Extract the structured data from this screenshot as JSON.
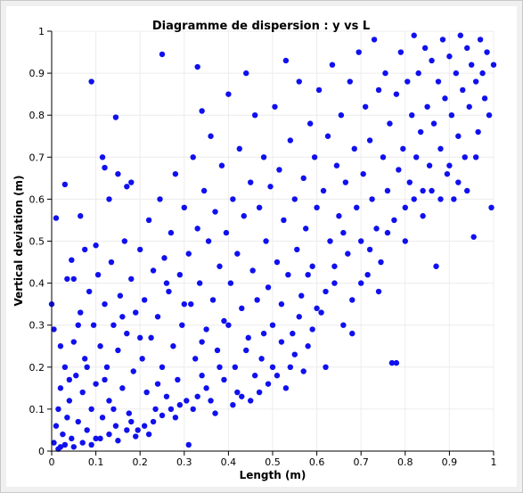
{
  "chart_data": {
    "type": "scatter",
    "title": "Diagramme de dispersion : y vs L",
    "xlabel": "Length (m)",
    "ylabel": "Vertical deviation (m)",
    "xlim": [
      0,
      1
    ],
    "ylim": [
      0,
      1
    ],
    "xticks": [
      "0",
      "0.1",
      "0.2",
      "0.3",
      "0.4",
      "0.5",
      "0.6",
      "0.7",
      "0.8",
      "0.9",
      "1"
    ],
    "yticks": [
      "0",
      "0.1",
      "0.2",
      "0.3",
      "0.4",
      "0.5",
      "0.6",
      "0.7",
      "0.8",
      "0.9",
      "1"
    ],
    "grid": true,
    "legend": "none",
    "point_color": "#1010ee",
    "points": [
      [
        0.0,
        0.35
      ],
      [
        0.005,
        0.29
      ],
      [
        0.01,
        0.555
      ],
      [
        0.02,
        0.01
      ],
      [
        0.03,
        0.635
      ],
      [
        0.035,
        0.41
      ],
      [
        0.045,
        0.455
      ],
      [
        0.05,
        0.41
      ],
      [
        0.065,
        0.56
      ],
      [
        0.075,
        0.48
      ],
      [
        0.09,
        0.88
      ],
      [
        0.1,
        0.49
      ],
      [
        0.115,
        0.7
      ],
      [
        0.12,
        0.675
      ],
      [
        0.13,
        0.6
      ],
      [
        0.145,
        0.795
      ],
      [
        0.15,
        0.66
      ],
      [
        0.17,
        0.63
      ],
      [
        0.18,
        0.64
      ],
      [
        0.25,
        0.945
      ],
      [
        0.33,
        0.915
      ],
      [
        0.34,
        0.81
      ],
      [
        0.005,
        0.02
      ],
      [
        0.01,
        0.06
      ],
      [
        0.015,
        0.1
      ],
      [
        0.02,
        0.15
      ],
      [
        0.025,
        0.04
      ],
      [
        0.03,
        0.2
      ],
      [
        0.035,
        0.08
      ],
      [
        0.04,
        0.12
      ],
      [
        0.045,
        0.03
      ],
      [
        0.05,
        0.26
      ],
      [
        0.055,
        0.18
      ],
      [
        0.06,
        0.07
      ],
      [
        0.065,
        0.33
      ],
      [
        0.07,
        0.14
      ],
      [
        0.075,
        0.22
      ],
      [
        0.08,
        0.05
      ],
      [
        0.085,
        0.38
      ],
      [
        0.09,
        0.1
      ],
      [
        0.095,
        0.3
      ],
      [
        0.1,
        0.16
      ],
      [
        0.105,
        0.42
      ],
      [
        0.11,
        0.25
      ],
      [
        0.115,
        0.08
      ],
      [
        0.12,
        0.35
      ],
      [
        0.125,
        0.2
      ],
      [
        0.13,
        0.12
      ],
      [
        0.135,
        0.45
      ],
      [
        0.14,
        0.3
      ],
      [
        0.145,
        0.06
      ],
      [
        0.15,
        0.24
      ],
      [
        0.155,
        0.37
      ],
      [
        0.16,
        0.15
      ],
      [
        0.165,
        0.5
      ],
      [
        0.17,
        0.28
      ],
      [
        0.175,
        0.09
      ],
      [
        0.18,
        0.41
      ],
      [
        0.185,
        0.19
      ],
      [
        0.19,
        0.33
      ],
      [
        0.195,
        0.05
      ],
      [
        0.2,
        0.48
      ],
      [
        0.205,
        0.22
      ],
      [
        0.21,
        0.36
      ],
      [
        0.215,
        0.14
      ],
      [
        0.22,
        0.55
      ],
      [
        0.225,
        0.27
      ],
      [
        0.23,
        0.43
      ],
      [
        0.235,
        0.1
      ],
      [
        0.24,
        0.32
      ],
      [
        0.245,
        0.6
      ],
      [
        0.25,
        0.2
      ],
      [
        0.255,
        0.46
      ],
      [
        0.26,
        0.13
      ],
      [
        0.265,
        0.38
      ],
      [
        0.27,
        0.52
      ],
      [
        0.275,
        0.25
      ],
      [
        0.28,
        0.66
      ],
      [
        0.285,
        0.17
      ],
      [
        0.29,
        0.42
      ],
      [
        0.295,
        0.3
      ],
      [
        0.3,
        0.58
      ],
      [
        0.305,
        0.12
      ],
      [
        0.31,
        0.47
      ],
      [
        0.315,
        0.35
      ],
      [
        0.32,
        0.7
      ],
      [
        0.325,
        0.22
      ],
      [
        0.33,
        0.53
      ],
      [
        0.335,
        0.4
      ],
      [
        0.34,
        0.18
      ],
      [
        0.345,
        0.62
      ],
      [
        0.35,
        0.29
      ],
      [
        0.355,
        0.5
      ],
      [
        0.36,
        0.75
      ],
      [
        0.365,
        0.36
      ],
      [
        0.37,
        0.57
      ],
      [
        0.375,
        0.24
      ],
      [
        0.38,
        0.44
      ],
      [
        0.385,
        0.68
      ],
      [
        0.39,
        0.31
      ],
      [
        0.395,
        0.52
      ],
      [
        0.4,
        0.85
      ],
      [
        0.405,
        0.4
      ],
      [
        0.41,
        0.6
      ],
      [
        0.415,
        0.2
      ],
      [
        0.42,
        0.47
      ],
      [
        0.425,
        0.72
      ],
      [
        0.43,
        0.34
      ],
      [
        0.435,
        0.56
      ],
      [
        0.44,
        0.9
      ],
      [
        0.445,
        0.27
      ],
      [
        0.45,
        0.64
      ],
      [
        0.455,
        0.43
      ],
      [
        0.46,
        0.8
      ],
      [
        0.465,
        0.36
      ],
      [
        0.47,
        0.58
      ],
      [
        0.475,
        0.22
      ],
      [
        0.48,
        0.7
      ],
      [
        0.485,
        0.5
      ],
      [
        0.49,
        0.39
      ],
      [
        0.495,
        0.63
      ],
      [
        0.5,
        0.3
      ],
      [
        0.505,
        0.82
      ],
      [
        0.51,
        0.45
      ],
      [
        0.515,
        0.67
      ],
      [
        0.52,
        0.35
      ],
      [
        0.525,
        0.55
      ],
      [
        0.53,
        0.93
      ],
      [
        0.535,
        0.42
      ],
      [
        0.54,
        0.74
      ],
      [
        0.545,
        0.28
      ],
      [
        0.55,
        0.6
      ],
      [
        0.555,
        0.48
      ],
      [
        0.56,
        0.88
      ],
      [
        0.565,
        0.37
      ],
      [
        0.57,
        0.65
      ],
      [
        0.575,
        0.53
      ],
      [
        0.58,
        0.25
      ],
      [
        0.585,
        0.78
      ],
      [
        0.59,
        0.44
      ],
      [
        0.595,
        0.7
      ],
      [
        0.6,
        0.58
      ],
      [
        0.605,
        0.86
      ],
      [
        0.61,
        0.33
      ],
      [
        0.615,
        0.62
      ],
      [
        0.62,
        0.2
      ],
      [
        0.625,
        0.75
      ],
      [
        0.63,
        0.5
      ],
      [
        0.635,
        0.92
      ],
      [
        0.64,
        0.4
      ],
      [
        0.645,
        0.68
      ],
      [
        0.65,
        0.56
      ],
      [
        0.655,
        0.8
      ],
      [
        0.66,
        0.3
      ],
      [
        0.665,
        0.64
      ],
      [
        0.67,
        0.47
      ],
      [
        0.675,
        0.88
      ],
      [
        0.68,
        0.36
      ],
      [
        0.685,
        0.72
      ],
      [
        0.69,
        0.58
      ],
      [
        0.695,
        0.95
      ],
      [
        0.7,
        0.5
      ],
      [
        0.705,
        0.66
      ],
      [
        0.71,
        0.82
      ],
      [
        0.715,
        0.42
      ],
      [
        0.72,
        0.74
      ],
      [
        0.725,
        0.6
      ],
      [
        0.73,
        0.98
      ],
      [
        0.735,
        0.53
      ],
      [
        0.74,
        0.86
      ],
      [
        0.745,
        0.45
      ],
      [
        0.75,
        0.7
      ],
      [
        0.755,
        0.9
      ],
      [
        0.76,
        0.62
      ],
      [
        0.765,
        0.78
      ],
      [
        0.77,
        0.21
      ],
      [
        0.775,
        0.55
      ],
      [
        0.78,
        0.85
      ],
      [
        0.785,
        0.67
      ],
      [
        0.79,
        0.95
      ],
      [
        0.795,
        0.72
      ],
      [
        0.8,
        0.58
      ],
      [
        0.805,
        0.88
      ],
      [
        0.81,
        0.64
      ],
      [
        0.815,
        0.8
      ],
      [
        0.82,
        0.99
      ],
      [
        0.825,
        0.7
      ],
      [
        0.83,
        0.9
      ],
      [
        0.835,
        0.76
      ],
      [
        0.84,
        0.62
      ],
      [
        0.845,
        0.96
      ],
      [
        0.85,
        0.82
      ],
      [
        0.855,
        0.68
      ],
      [
        0.86,
        0.93
      ],
      [
        0.865,
        0.78
      ],
      [
        0.87,
        0.44
      ],
      [
        0.875,
        0.88
      ],
      [
        0.88,
        0.72
      ],
      [
        0.885,
        0.98
      ],
      [
        0.89,
        0.84
      ],
      [
        0.895,
        0.66
      ],
      [
        0.9,
        0.94
      ],
      [
        0.905,
        0.8
      ],
      [
        0.91,
        0.6
      ],
      [
        0.915,
        0.9
      ],
      [
        0.92,
        0.75
      ],
      [
        0.925,
        0.99
      ],
      [
        0.93,
        0.86
      ],
      [
        0.935,
        0.7
      ],
      [
        0.94,
        0.96
      ],
      [
        0.945,
        0.82
      ],
      [
        0.95,
        0.92
      ],
      [
        0.955,
        0.51
      ],
      [
        0.96,
        0.88
      ],
      [
        0.965,
        0.76
      ],
      [
        0.97,
        0.98
      ],
      [
        0.975,
        0.9
      ],
      [
        0.98,
        0.84
      ],
      [
        0.985,
        0.95
      ],
      [
        0.99,
        0.8
      ],
      [
        0.995,
        0.58
      ],
      [
        1.0,
        0.92
      ],
      [
        0.02,
        0.25
      ],
      [
        0.04,
        0.17
      ],
      [
        0.06,
        0.3
      ],
      [
        0.08,
        0.2
      ],
      [
        0.1,
        0.03
      ],
      [
        0.12,
        0.17
      ],
      [
        0.14,
        0.1
      ],
      [
        0.16,
        0.32
      ],
      [
        0.18,
        0.07
      ],
      [
        0.2,
        0.27
      ],
      [
        0.22,
        0.04
      ],
      [
        0.24,
        0.16
      ],
      [
        0.26,
        0.4
      ],
      [
        0.28,
        0.08
      ],
      [
        0.3,
        0.35
      ],
      [
        0.32,
        0.1
      ],
      [
        0.34,
        0.26
      ],
      [
        0.36,
        0.12
      ],
      [
        0.38,
        0.2
      ],
      [
        0.4,
        0.3
      ],
      [
        0.42,
        0.14
      ],
      [
        0.44,
        0.24
      ],
      [
        0.46,
        0.18
      ],
      [
        0.48,
        0.28
      ],
      [
        0.5,
        0.2
      ],
      [
        0.52,
        0.26
      ],
      [
        0.54,
        0.2
      ],
      [
        0.56,
        0.32
      ],
      [
        0.58,
        0.42
      ],
      [
        0.6,
        0.34
      ],
      [
        0.62,
        0.38
      ],
      [
        0.64,
        0.44
      ],
      [
        0.66,
        0.52
      ],
      [
        0.68,
        0.28
      ],
      [
        0.7,
        0.4
      ],
      [
        0.72,
        0.48
      ],
      [
        0.74,
        0.38
      ],
      [
        0.76,
        0.52
      ],
      [
        0.78,
        0.21
      ],
      [
        0.8,
        0.5
      ],
      [
        0.82,
        0.6
      ],
      [
        0.84,
        0.56
      ],
      [
        0.86,
        0.62
      ],
      [
        0.88,
        0.6
      ],
      [
        0.9,
        0.68
      ],
      [
        0.92,
        0.64
      ],
      [
        0.94,
        0.62
      ],
      [
        0.96,
        0.7
      ],
      [
        0.015,
        0.005
      ],
      [
        0.03,
        0.015
      ],
      [
        0.05,
        0.01
      ],
      [
        0.07,
        0.02
      ],
      [
        0.09,
        0.015
      ],
      [
        0.11,
        0.03
      ],
      [
        0.13,
        0.04
      ],
      [
        0.15,
        0.025
      ],
      [
        0.17,
        0.05
      ],
      [
        0.19,
        0.035
      ],
      [
        0.21,
        0.06
      ],
      [
        0.23,
        0.07
      ],
      [
        0.25,
        0.085
      ],
      [
        0.27,
        0.1
      ],
      [
        0.29,
        0.11
      ],
      [
        0.31,
        0.015
      ],
      [
        0.33,
        0.13
      ],
      [
        0.35,
        0.15
      ],
      [
        0.37,
        0.09
      ],
      [
        0.39,
        0.17
      ],
      [
        0.41,
        0.11
      ],
      [
        0.43,
        0.13
      ],
      [
        0.45,
        0.12
      ],
      [
        0.47,
        0.14
      ],
      [
        0.49,
        0.16
      ],
      [
        0.51,
        0.18
      ],
      [
        0.53,
        0.15
      ],
      [
        0.55,
        0.23
      ],
      [
        0.57,
        0.19
      ],
      [
        0.59,
        0.29
      ]
    ]
  }
}
